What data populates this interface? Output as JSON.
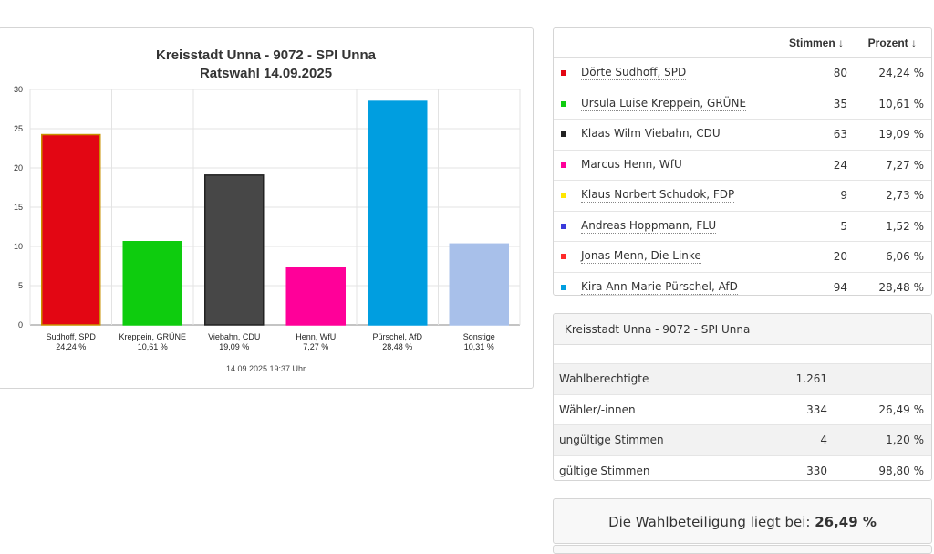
{
  "chart_data": {
    "type": "bar",
    "title": "Kreisstadt Unna - 9072 - SPI Unna",
    "subtitle": "Ratswahl 14.09.2025",
    "categories": [
      "Sudhoff, SPD",
      "Kreppein, GRÜNE",
      "Viebahn, CDU",
      "Henn, WfU",
      "Pürschel, AfD",
      "Sonstige"
    ],
    "category_pct": [
      "24,24 %",
      "10,61 %",
      "19,09 %",
      "7,27 %",
      "28,48 %",
      "10,31 %"
    ],
    "values": [
      24.24,
      10.61,
      19.09,
      7.27,
      28.48,
      10.31
    ],
    "colors": [
      "#e30613",
      "#0ecc0e",
      "#474747",
      "#ff0099",
      "#009ee0",
      "#a8c0ea"
    ],
    "bar_borders": [
      "#c89000",
      "#0ecc0e",
      "#222222",
      "#ff0099",
      "#009ee0",
      "#a8c0ea"
    ],
    "ylim": [
      0,
      30
    ],
    "yticks": [
      0,
      5,
      10,
      15,
      20,
      25,
      30
    ],
    "grid": true,
    "timestamp": "14.09.2025 19:37 Uhr"
  },
  "results": {
    "col_votes": "Stimmen ↓",
    "col_percent": "Prozent ↓",
    "rows": [
      {
        "name": "Dörte Sudhoff, SPD",
        "votes": "80",
        "percent": "24,24 %",
        "color": "#e30613"
      },
      {
        "name": "Ursula Luise Kreppein, GRÜNE",
        "votes": "35",
        "percent": "10,61 %",
        "color": "#0ecc0e"
      },
      {
        "name": "Klaas Wilm Viebahn, CDU",
        "votes": "63",
        "percent": "19,09 %",
        "color": "#222222"
      },
      {
        "name": "Marcus Henn, WfU",
        "votes": "24",
        "percent": "7,27 %",
        "color": "#ff0099"
      },
      {
        "name": "Klaus Norbert Schudok, FDP",
        "votes": "9",
        "percent": "2,73 %",
        "color": "#ffe600"
      },
      {
        "name": "Andreas Hoppmann, FLU",
        "votes": "5",
        "percent": "1,52 %",
        "color": "#3a3adb"
      },
      {
        "name": "Jonas Menn, Die Linke",
        "votes": "20",
        "percent": "6,06 %",
        "color": "#ff2a2a"
      },
      {
        "name": "Kira Ann-Marie Pürschel, AfD",
        "votes": "94",
        "percent": "28,48 %",
        "color": "#009ee0"
      }
    ]
  },
  "stats": {
    "title": "Kreisstadt Unna - 9072 - SPI Unna",
    "rows": [
      {
        "label": "Wahlberechtigte",
        "value": "1.261",
        "percent": ""
      },
      {
        "label": "Wähler/-innen",
        "value": "334",
        "percent": "26,49 %"
      },
      {
        "label": "ungültige Stimmen",
        "value": "4",
        "percent": "1,20 %"
      },
      {
        "label": "gültige Stimmen",
        "value": "330",
        "percent": "98,80 %"
      }
    ]
  },
  "turnout": {
    "text": "Die Wahlbeteiligung liegt bei:",
    "value": "26,49 %"
  }
}
